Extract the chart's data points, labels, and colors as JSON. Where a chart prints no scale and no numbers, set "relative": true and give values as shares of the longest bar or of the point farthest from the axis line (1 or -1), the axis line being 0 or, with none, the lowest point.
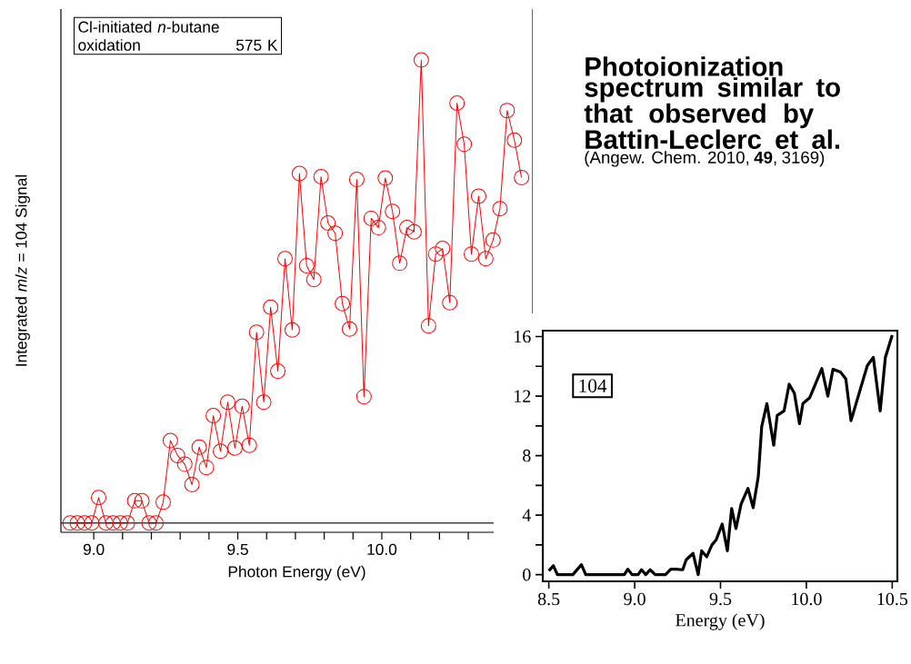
{
  "chart_data": [
    {
      "type": "line",
      "relative": true,
      "xlabel": "Photon Energy (eV)",
      "ylabel": "Integrated *m*/*z* = 104 Signal",
      "annotations": [
        "Cl-initiated *n*-butane",
        "oxidation",
        "575 K"
      ],
      "xlim": [
        8.886,
        10.524
      ],
      "xticks": [
        {
          "value": 9,
          "label": "9.0"
        },
        {
          "value": 9.1,
          "label": null
        },
        {
          "value": 9.2,
          "label": null
        },
        {
          "value": 9.3,
          "label": null
        },
        {
          "value": 9.4,
          "label": null
        },
        9.5,
        {
          "value": 9.6,
          "label": null
        },
        {
          "value": 9.7,
          "label": null
        },
        {
          "value": 9.8,
          "label": null
        },
        {
          "value": 9.9,
          "label": null
        },
        {
          "value": 10,
          "label": "10.0"
        },
        {
          "value": 10.1,
          "label": null
        },
        {
          "value": 10.2,
          "label": null
        },
        {
          "value": 10.3,
          "label": null
        }
      ],
      "marker": "circle",
      "line_style": "solid",
      "x": [
        8.918,
        8.943,
        8.968,
        8.993,
        9.017,
        9.042,
        9.067,
        9.092,
        9.117,
        9.142,
        9.167,
        9.192,
        9.216,
        9.241,
        9.266,
        9.291,
        9.316,
        9.341,
        9.366,
        9.391,
        9.415,
        9.44,
        9.465,
        9.49,
        9.515,
        9.54,
        9.565,
        9.59,
        9.614,
        9.639,
        9.664,
        9.689,
        9.714,
        9.739,
        9.764,
        9.789,
        9.813,
        9.838,
        9.863,
        9.888,
        9.913,
        9.938,
        9.963,
        9.988,
        10.012,
        10.037,
        10.062,
        10.087,
        10.112,
        10.137,
        10.162,
        10.187,
        10.211,
        10.236,
        10.261,
        10.286,
        10.311,
        10.336,
        10.361,
        10.386,
        10.41,
        10.435,
        10.46,
        10.485
      ],
      "series": [
        {
          "color": "#ff0000",
          "values": [
            0,
            0,
            0,
            0,
            0.055,
            0,
            0,
            0,
            0,
            0.048,
            0.048,
            0,
            0,
            0.045,
            0.178,
            0.146,
            0.127,
            0.083,
            0.164,
            0.12,
            0.232,
            0.155,
            0.261,
            0.162,
            0.252,
            0.168,
            0.412,
            0.261,
            0.466,
            0.328,
            0.571,
            0.417,
            0.755,
            0.556,
            0.526,
            0.748,
            0.648,
            0.626,
            0.474,
            0.419,
            0.742,
            0.273,
            0.658,
            0.638,
            0.745,
            0.673,
            0.561,
            0.638,
            0.629,
            1,
            0.426,
            0.581,
            0.593,
            0.476,
            0.907,
            0.818,
            0.581,
            0.706,
            0.571,
            0.611,
            0.679,
            0.891,
            0.827,
            0.746
          ]
        }
      ]
    },
    {
      "type": "other",
      "title": "Photoionization spectrum similar to that observed by Battin-Leclerc et al.",
      "annotations": [
        "(Angew. Chem. 2010, **49**, 3169)"
      ]
    },
    {
      "type": "line",
      "xlabel": "Energy (eV)",
      "annotations": [
        "104"
      ],
      "xlim": [
        8.465,
        10.53
      ],
      "ylim": [
        -0.45,
        16.4
      ],
      "xticks": [
        8.5,
        {
          "value": 9,
          "label": "9.0"
        },
        9.5,
        {
          "value": 10,
          "label": "10.0"
        },
        10.5
      ],
      "yticks": [
        0,
        {
          "value": 2,
          "label": null
        },
        4,
        {
          "value": 6,
          "label": null
        },
        8,
        {
          "value": 10,
          "label": null
        },
        12,
        {
          "value": 14,
          "label": null
        },
        16
      ],
      "line_style": "solid",
      "x": [
        8.5,
        8.527,
        8.55,
        8.64,
        8.69,
        8.715,
        8.94,
        8.96,
        8.985,
        9.02,
        9.04,
        9.065,
        9.09,
        9.12,
        9.18,
        9.21,
        9.24,
        9.28,
        9.3,
        9.34,
        9.37,
        9.39,
        9.42,
        9.45,
        9.475,
        9.51,
        9.54,
        9.565,
        9.59,
        9.62,
        9.66,
        9.69,
        9.72,
        9.74,
        9.77,
        9.81,
        9.83,
        9.87,
        9.9,
        9.93,
        9.96,
        9.98,
        10.02,
        10.09,
        10.125,
        10.155,
        10.2,
        10.23,
        10.26,
        10.355,
        10.39,
        10.43,
        10.46,
        10.5
      ],
      "series": [
        {
          "color": "#000000",
          "values": [
            0.26,
            0.6,
            0,
            0,
            0.67,
            0,
            0,
            0.37,
            0,
            0,
            0.33,
            0,
            0.33,
            0,
            0,
            0.37,
            0.37,
            0.33,
            1.0,
            1.43,
            0,
            1.6,
            1.2,
            2.0,
            2.35,
            3.4,
            1.6,
            4.45,
            3.1,
            4.75,
            5.8,
            4.5,
            6.6,
            9.95,
            11.5,
            8.7,
            10.7,
            11.0,
            12.8,
            12.2,
            10.15,
            11.5,
            11.9,
            13.85,
            12.0,
            13.8,
            13.6,
            13.15,
            10.35,
            14.05,
            14.6,
            11.0,
            14.6,
            16.1
          ]
        }
      ]
    }
  ]
}
